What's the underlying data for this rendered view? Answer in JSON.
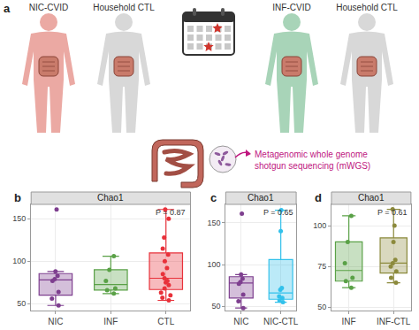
{
  "panel_a": {
    "label": "a",
    "subjects": [
      "NIC-CVID",
      "Household CTL",
      "INF-CVID",
      "Household CTL"
    ],
    "method": [
      "Metagenomic whole genome",
      "shotgun sequencing (mWGS)"
    ]
  },
  "chart_data": [
    {
      "panel": "b",
      "type": "box",
      "title": "Chao1",
      "annotation": "P = 0.87",
      "ylim": [
        42,
        167
      ],
      "yticks": [
        50,
        100,
        150
      ],
      "grid": true,
      "series": [
        {
          "name": "NIC",
          "color": "#7E3F8F",
          "values": [
            161,
            88,
            83,
            79,
            77,
            64,
            56,
            48
          ]
        },
        {
          "name": "INF",
          "color": "#5AA147",
          "values": [
            106,
            90,
            77,
            68,
            66,
            62
          ]
        },
        {
          "name": "CTL",
          "color": "#E8313A",
          "values": [
            161,
            150,
            128,
            115,
            108,
            100,
            92,
            85,
            80,
            77,
            75,
            72,
            68,
            63,
            60,
            57,
            54
          ]
        }
      ]
    },
    {
      "panel": "c",
      "type": "box",
      "title": "Chao1",
      "annotation": "P = 0.65",
      "ylim": [
        45,
        172
      ],
      "yticks": [
        50,
        100,
        150
      ],
      "grid": true,
      "series": [
        {
          "name": "NIC",
          "color": "#7E3F8F",
          "values": [
            161,
            88,
            83,
            79,
            77,
            64,
            56,
            48
          ]
        },
        {
          "name": "NIC-CTL",
          "color": "#32C1EB",
          "values": [
            165,
            140,
            72,
            70,
            62,
            60,
            57,
            55
          ]
        }
      ]
    },
    {
      "panel": "d",
      "type": "box",
      "title": "Chao1",
      "annotation": "P = 0.61",
      "ylim": [
        48,
        113
      ],
      "yticks": [
        50,
        75,
        100
      ],
      "grid": true,
      "series": [
        {
          "name": "INF",
          "color": "#5AA147",
          "values": [
            106,
            90,
            77,
            68,
            66,
            62
          ]
        },
        {
          "name": "INF-CTL",
          "color": "#8C8A3C",
          "values": [
            110,
            100,
            90,
            79,
            77,
            75,
            72,
            68,
            65
          ]
        }
      ]
    }
  ]
}
